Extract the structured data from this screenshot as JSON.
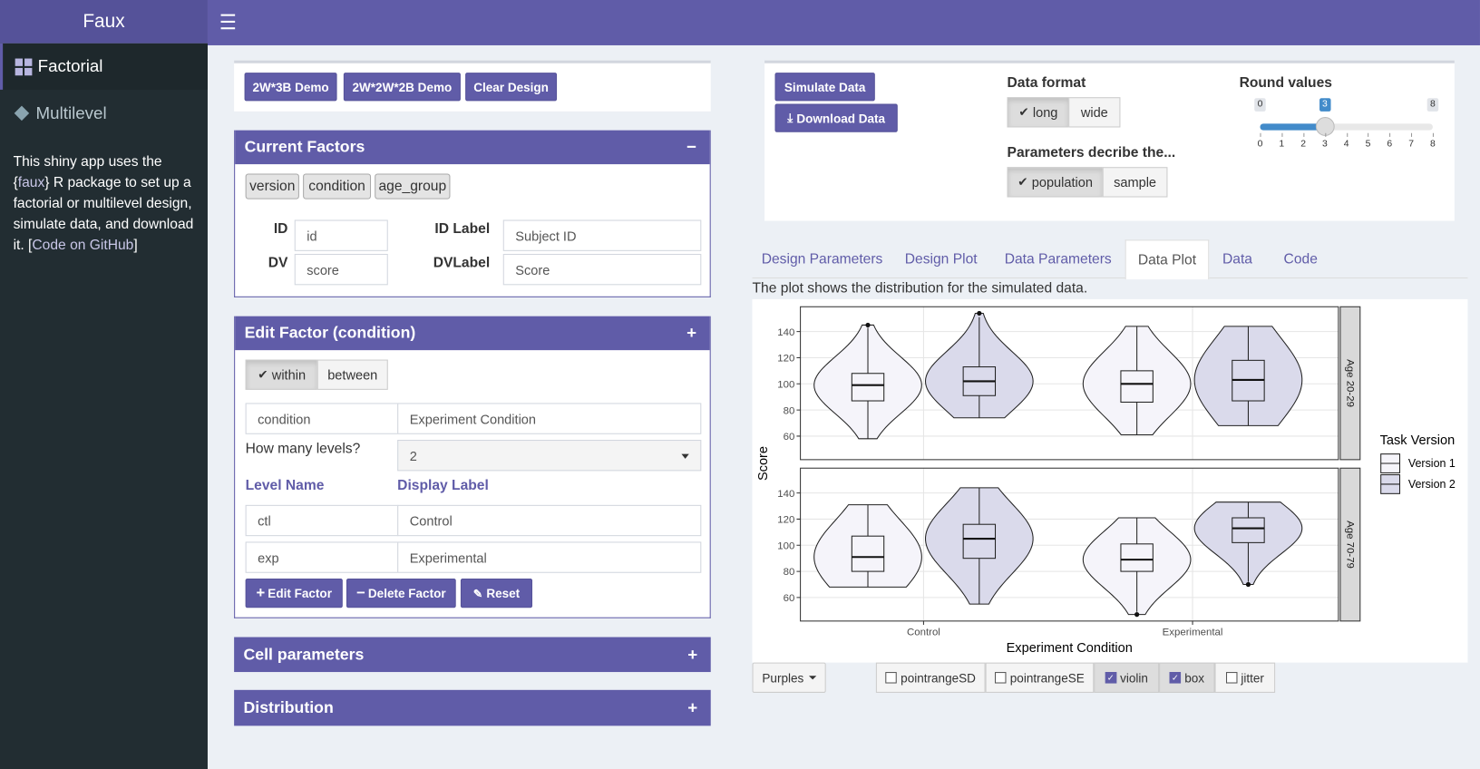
{
  "sidebar": {
    "brand": "Faux",
    "menu": [
      "Factorial",
      "Multilevel"
    ],
    "about": [
      "This shiny app uses the {",
      "faux",
      "} R package to set up a factorial or multilevel design, simulate data, and download it. [",
      "Code on GitHub",
      "]"
    ]
  },
  "demo_buttons": [
    "2W*3B Demo",
    "2W*2W*2B Demo",
    "Clear Design"
  ],
  "current_factors": {
    "title": "Current Factors",
    "factors": [
      "version",
      "condition",
      "age_group"
    ],
    "fields": [
      {
        "label": "ID",
        "value": "id"
      },
      {
        "label": "ID Label",
        "value": "Subject ID"
      },
      {
        "label": "DV",
        "value": "score"
      },
      {
        "label": "DVLabel",
        "value": "Score"
      }
    ]
  },
  "edit_factor": {
    "title": "Edit Factor (condition)",
    "type_options": [
      "within",
      "between"
    ],
    "selected_type": 0,
    "name": "condition",
    "label": "Experiment Condition",
    "levels_prompt": "How many levels?",
    "levels_count": 2,
    "level_headers": [
      "Level Name",
      "Display Label"
    ],
    "levels": [
      [
        "ctl",
        "Control"
      ],
      [
        "exp",
        "Experimental"
      ]
    ],
    "buttons": [
      "Edit Factor",
      "Delete Factor",
      "Reset"
    ]
  },
  "collapsed_boxes": [
    "Cell parameters",
    "Distribution"
  ],
  "simulate": {
    "buttons": [
      "Simulate Data",
      "Download Data"
    ],
    "data_format": {
      "label": "Data format",
      "options": [
        "long",
        "wide"
      ],
      "selected": 0
    },
    "parameters": {
      "label": "Parameters decribe the...",
      "options": [
        "population",
        "sample"
      ],
      "selected": 0
    },
    "round": {
      "label": "Round values",
      "min": 0,
      "max": 8,
      "value": 3,
      "ticks": [
        0,
        1,
        2,
        3,
        4,
        5,
        6,
        7,
        8
      ]
    }
  },
  "tabs": {
    "items": [
      "Design Parameters",
      "Design Plot",
      "Data Parameters",
      "Data Plot",
      "Data",
      "Code"
    ],
    "active": 3
  },
  "plot_note": "The plot shows the distribution for the simulated data.",
  "chart_data": {
    "type": "violin",
    "xlabel": "Experiment Condition",
    "ylabel": "Score",
    "categories": [
      "Control",
      "Experimental"
    ],
    "panels": [
      "Age 20-29",
      "Age 70-79"
    ],
    "legend_title": "Task Version",
    "ylim": [
      42,
      159
    ],
    "yticks": [
      60,
      80,
      100,
      120,
      140
    ],
    "grid": true,
    "series": [
      {
        "name": "Version 1",
        "color": "#f5f4fa",
        "values": [
          [
            [
              58,
              87,
              99,
              108,
              143
            ],
            [
              61,
              86,
              100,
              110,
              144
            ]
          ],
          [
            [
              68,
              80,
              91,
              107,
              131
            ],
            [
              49,
              80,
              89,
              101,
              121
            ]
          ]
        ],
        "outliers": [
          [
            [
              145
            ],
            []
          ],
          [
            [],
            [
              47
            ]
          ]
        ]
      },
      {
        "name": "Version 2",
        "color": "#dadaeb",
        "values": [
          [
            [
              74,
              91,
              102,
              113,
              151
            ],
            [
              68,
              87,
              103,
              118,
              144
            ]
          ],
          [
            [
              55,
              90,
              105,
              116,
              144
            ],
            [
              72,
              102,
              113,
              121,
              133
            ]
          ]
        ],
        "outliers": [
          [
            [
              154
            ],
            []
          ],
          [
            [],
            [
              70
            ]
          ]
        ]
      }
    ]
  },
  "plot_controls": {
    "palette": "Purples",
    "options": [
      {
        "label": "pointrangeSD",
        "checked": false
      },
      {
        "label": "pointrangeSE",
        "checked": false
      },
      {
        "label": "violin",
        "checked": true
      },
      {
        "label": "box",
        "checked": true
      },
      {
        "label": "jitter",
        "checked": false
      }
    ]
  }
}
